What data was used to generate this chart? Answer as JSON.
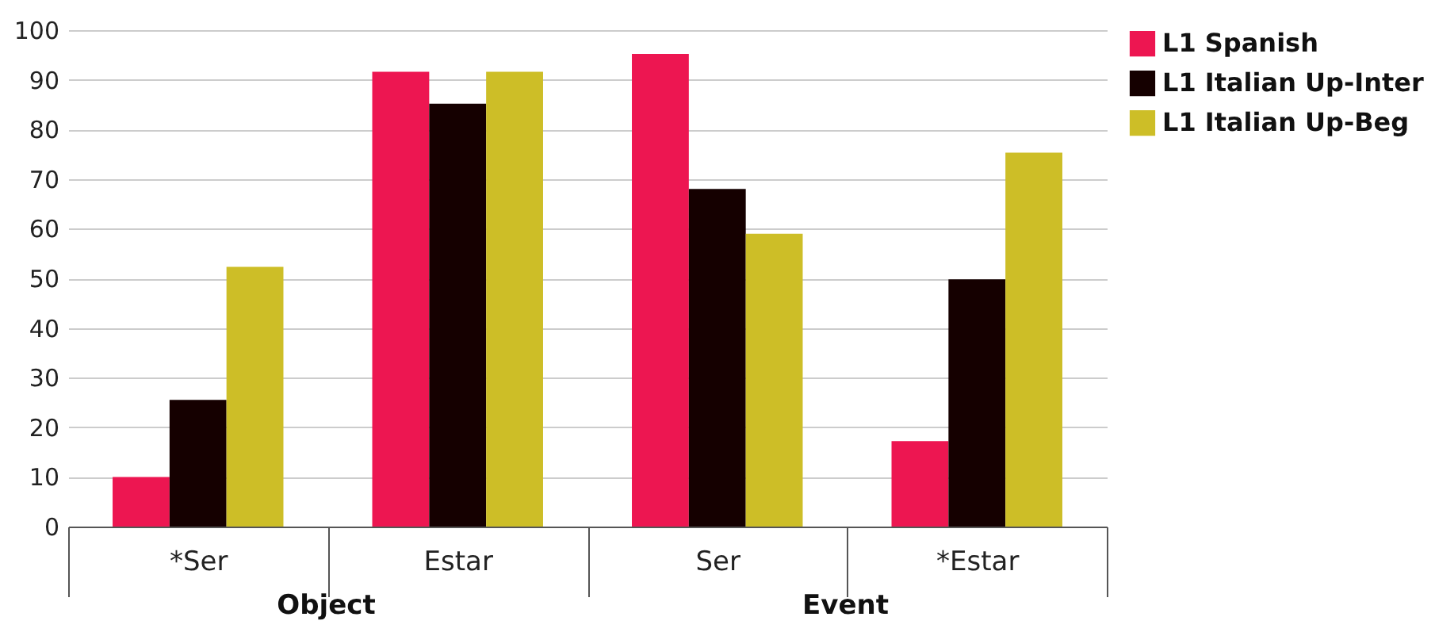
{
  "chart_data": {
    "type": "bar",
    "categories": [
      "*Ser",
      "Estar",
      "Ser",
      "*Estar"
    ],
    "series": [
      {
        "name": "L1 Spanish",
        "color": "#ed1651",
        "values": [
          10,
          91.6,
          95.2,
          17.2
        ]
      },
      {
        "name": "L1 Italian Up-Inter",
        "color": "#150000",
        "values": [
          25.5,
          85.2,
          68,
          49.8
        ]
      },
      {
        "name": "L1 Italian Up-Beg",
        "color": "#cdbe27",
        "values": [
          52.3,
          91.6,
          59,
          75.3
        ]
      }
    ],
    "ylim": [
      0,
      100
    ],
    "yticks": [
      0,
      10,
      20,
      30,
      40,
      50,
      60,
      70,
      80,
      90,
      100
    ],
    "grid": "y",
    "legend": "top right",
    "annotations": [
      "Object",
      "Event"
    ]
  }
}
